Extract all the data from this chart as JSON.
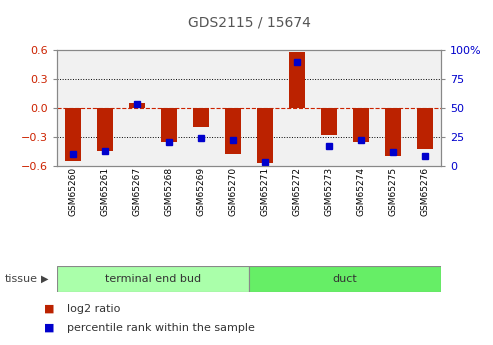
{
  "title": "GDS2115 / 15674",
  "samples": [
    "GSM65260",
    "GSM65261",
    "GSM65267",
    "GSM65268",
    "GSM65269",
    "GSM65270",
    "GSM65271",
    "GSM65272",
    "GSM65273",
    "GSM65274",
    "GSM65275",
    "GSM65276"
  ],
  "log2_ratio": [
    -0.55,
    -0.45,
    0.05,
    -0.36,
    -0.2,
    -0.48,
    -0.575,
    0.575,
    -0.28,
    -0.36,
    -0.5,
    -0.43
  ],
  "percentile": [
    10,
    13,
    53,
    20,
    24,
    22,
    3,
    90,
    17,
    22,
    12,
    8
  ],
  "bar_color": "#bb2200",
  "dot_color": "#0000cc",
  "ylim_left": [
    -0.6,
    0.6
  ],
  "ylim_right": [
    0,
    100
  ],
  "yticks_left": [
    -0.6,
    -0.3,
    0.0,
    0.3,
    0.6
  ],
  "yticks_right": [
    0,
    25,
    50,
    75,
    100
  ],
  "hline_color": "#cc2200",
  "grid_color": "#000000",
  "tissue_groups": [
    {
      "label": "terminal end bud",
      "start": 0,
      "end": 6,
      "color": "#aaffaa"
    },
    {
      "label": "duct",
      "start": 6,
      "end": 12,
      "color": "#66ee66"
    }
  ],
  "tissue_label": "tissue",
  "legend_items": [
    {
      "label": "log2 ratio",
      "color": "#bb2200"
    },
    {
      "label": "percentile rank within the sample",
      "color": "#0000cc"
    }
  ],
  "tick_label_color_left": "#cc2200",
  "tick_label_color_right": "#0000cc",
  "title_color": "#555555",
  "title_fontsize": 10,
  "bar_width": 0.5,
  "dot_size": 4
}
